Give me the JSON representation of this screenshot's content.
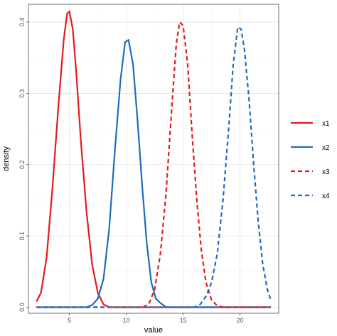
{
  "chart_data": {
    "type": "line",
    "xlabel": "value",
    "ylabel": "density",
    "xlim": [
      1.4,
      23.4
    ],
    "ylim": [
      -0.0085,
      0.425
    ],
    "x_ticks": [
      5,
      10,
      15,
      20
    ],
    "y_ticks": [
      0.0,
      0.1,
      0.2,
      0.3,
      0.4
    ],
    "y_tick_labels": [
      "0.0",
      "0.1",
      "0.2",
      "0.3",
      "0.4"
    ],
    "grid": true,
    "legend_position": "right",
    "series": [
      {
        "name": "x1",
        "color": "#e41a1c",
        "line_style": "solid",
        "points": [
          [
            2.1,
            0.008
          ],
          [
            2.5,
            0.02
          ],
          [
            3.0,
            0.07
          ],
          [
            3.5,
            0.165
          ],
          [
            4.0,
            0.275
          ],
          [
            4.5,
            0.375
          ],
          [
            4.8,
            0.412
          ],
          [
            5.0,
            0.415
          ],
          [
            5.3,
            0.39
          ],
          [
            5.6,
            0.33
          ],
          [
            6.0,
            0.235
          ],
          [
            6.5,
            0.135
          ],
          [
            7.0,
            0.06
          ],
          [
            7.5,
            0.02
          ],
          [
            8.0,
            0.004
          ],
          [
            8.5,
            0.0
          ],
          [
            22.7,
            0.0
          ]
        ]
      },
      {
        "name": "x2",
        "color": "#1f6bbf",
        "line_style": "solid",
        "points": [
          [
            2.1,
            0.0
          ],
          [
            6.5,
            0.0
          ],
          [
            7.0,
            0.003
          ],
          [
            7.5,
            0.012
          ],
          [
            8.0,
            0.04
          ],
          [
            8.5,
            0.11
          ],
          [
            9.0,
            0.22
          ],
          [
            9.5,
            0.32
          ],
          [
            9.9,
            0.372
          ],
          [
            10.2,
            0.375
          ],
          [
            10.6,
            0.34
          ],
          [
            11.0,
            0.26
          ],
          [
            11.4,
            0.17
          ],
          [
            11.8,
            0.09
          ],
          [
            12.2,
            0.035
          ],
          [
            12.6,
            0.012
          ],
          [
            13.0,
            0.006
          ],
          [
            13.5,
            0.0
          ],
          [
            22.7,
            0.0
          ]
        ]
      },
      {
        "name": "x3",
        "color": "#e41a1c",
        "line_style": "dashed",
        "points": [
          [
            2.1,
            0.0
          ],
          [
            11.5,
            0.0
          ],
          [
            12.0,
            0.005
          ],
          [
            12.5,
            0.025
          ],
          [
            13.0,
            0.075
          ],
          [
            13.5,
            0.16
          ],
          [
            14.0,
            0.28
          ],
          [
            14.4,
            0.37
          ],
          [
            14.7,
            0.4
          ],
          [
            15.0,
            0.395
          ],
          [
            15.4,
            0.34
          ],
          [
            15.8,
            0.24
          ],
          [
            16.2,
            0.15
          ],
          [
            16.6,
            0.08
          ],
          [
            17.0,
            0.035
          ],
          [
            17.5,
            0.01
          ],
          [
            18.0,
            0.002
          ],
          [
            18.5,
            0.0
          ],
          [
            22.7,
            0.0
          ]
        ]
      },
      {
        "name": "x4",
        "color": "#1f6bbf",
        "line_style": "dashed",
        "points": [
          [
            2.1,
            0.0
          ],
          [
            16.0,
            0.0
          ],
          [
            16.5,
            0.004
          ],
          [
            17.0,
            0.015
          ],
          [
            17.5,
            0.035
          ],
          [
            18.0,
            0.075
          ],
          [
            18.5,
            0.15
          ],
          [
            19.0,
            0.25
          ],
          [
            19.4,
            0.34
          ],
          [
            19.8,
            0.393
          ],
          [
            20.1,
            0.39
          ],
          [
            20.4,
            0.36
          ],
          [
            20.8,
            0.29
          ],
          [
            21.2,
            0.2
          ],
          [
            21.6,
            0.12
          ],
          [
            22.0,
            0.06
          ],
          [
            22.4,
            0.025
          ],
          [
            22.7,
            0.01
          ]
        ]
      }
    ]
  }
}
